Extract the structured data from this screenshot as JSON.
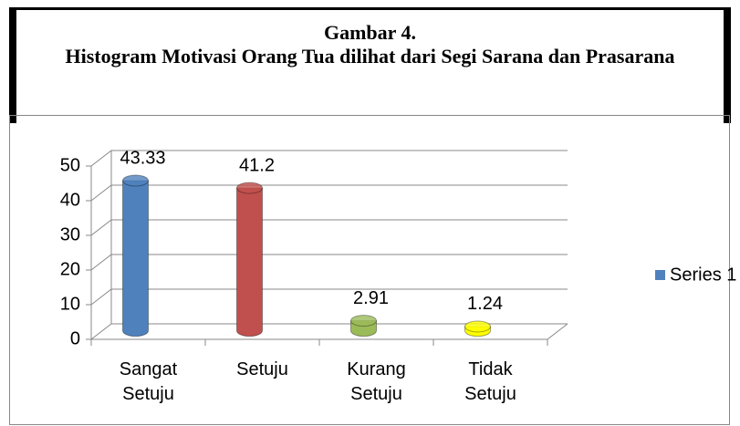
{
  "chart_data": {
    "type": "bar",
    "title": "Gambar 4.",
    "subtitle": "Histogram Motivasi Orang Tua dilihat dari Segi Sarana dan Prasarana",
    "categories": [
      "Sangat Setuju",
      "Setuju",
      "Kurang Setuju",
      "Tidak Setuju"
    ],
    "series": [
      {
        "name": "Series 1",
        "color": "#4f81bd",
        "colors": [
          "#4f81bd",
          "#c0504d",
          "#9bbb59",
          "#ffff00"
        ],
        "values": [
          43.33,
          41.2,
          2.91,
          1.24
        ]
      }
    ],
    "ylim": [
      0,
      50
    ],
    "yticks": [
      0,
      10,
      20,
      30,
      40,
      50
    ],
    "grid": true,
    "legend": "right"
  }
}
